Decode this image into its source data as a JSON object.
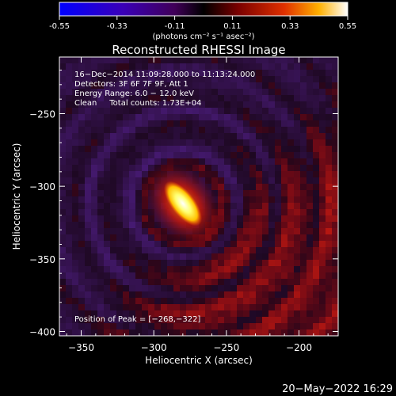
{
  "chart_data": {
    "type": "heatmap",
    "title": "Reconstructed RHESSI Image",
    "colorbar": {
      "ticks": [
        "-0.55",
        "-0.33",
        "-0.11",
        "0.11",
        "0.33",
        "0.55"
      ],
      "range": [
        -0.55,
        0.55
      ],
      "units_label": "(photons cm⁻² s⁻¹ asec⁻²)"
    },
    "xlabel": "Heliocentric X (arcsec)",
    "ylabel": "Heliocentric Y (arcsec)",
    "xlim": [
      -365,
      -173
    ],
    "ylim": [
      -403,
      -211
    ],
    "x_ticks": [
      {
        "value": -350,
        "label": "−350"
      },
      {
        "value": -300,
        "label": "−300"
      },
      {
        "value": -250,
        "label": "−250"
      },
      {
        "value": -200,
        "label": "−200"
      }
    ],
    "y_ticks": [
      {
        "value": -250,
        "label": "−250"
      },
      {
        "value": -300,
        "label": "−300"
      },
      {
        "value": -350,
        "label": "−350"
      },
      {
        "value": -400,
        "label": "−400"
      }
    ],
    "annotations": [
      "16−Dec−2014 11:09:28.000 to 11:13:24.000",
      "Detectors: 3F 6F 7F 9F, Att 1",
      "Energy Range: 6.0 − 12.0 keV",
      "Clean     Total counts: 1.73E+04"
    ],
    "peak_label": "Position of Peak = [−268,−322]",
    "peak": {
      "x": -268,
      "y": -322
    },
    "colormap": "heat (blue → purple → red → yellow → white)"
  },
  "footer": {
    "timestamp": "20−May−2022 16:29"
  }
}
